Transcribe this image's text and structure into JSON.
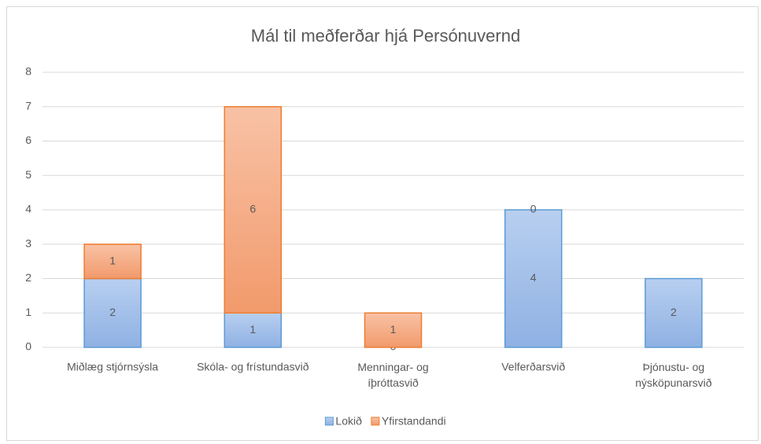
{
  "chart_data": {
    "type": "stacked_bar",
    "title": "Mál til meðferðar hjá Persónuvernd",
    "categories": [
      "Miðlæg stjórnsýsla",
      "Skóla- og frístundasvið",
      "Menningar- og íþróttasvið",
      "Velferðarsvið",
      "Þjónustu- og nýsköpunarsvið"
    ],
    "series": [
      {
        "name": "Lokið",
        "color": "#9dbde8",
        "values": [
          2,
          1,
          0,
          4,
          2
        ]
      },
      {
        "name": "Yfirstandandi",
        "color": "#f4a57c",
        "values": [
          1,
          6,
          1,
          0,
          null
        ]
      }
    ],
    "ylim": [
      0,
      8
    ],
    "yticks": [
      0,
      1,
      2,
      3,
      4,
      5,
      6,
      7,
      8
    ],
    "grid": true,
    "legend": "bottom"
  }
}
